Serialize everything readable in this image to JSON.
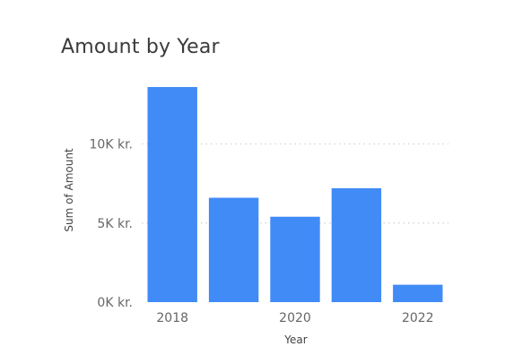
{
  "chart_data": {
    "type": "bar",
    "title": "Amount by Year",
    "xlabel": "Year",
    "ylabel": "Sum of Amount",
    "categories": [
      "2018",
      "2019",
      "2020",
      "2021",
      "2022"
    ],
    "x_tick_labels": [
      "2018",
      "2020",
      "2022"
    ],
    "x_tick_positions": [
      "2018",
      "2020",
      "2022"
    ],
    "values": [
      13600,
      6600,
      5400,
      7200,
      1100
    ],
    "ylim": [
      0,
      14000
    ],
    "y_ticks": [
      {
        "value": 0,
        "label": "0K kr."
      },
      {
        "value": 5000,
        "label": "5K kr."
      },
      {
        "value": 10000,
        "label": "10K kr."
      }
    ],
    "grid": true,
    "bar_color": "#418BF7",
    "grid_color": "#D0D0D0"
  }
}
